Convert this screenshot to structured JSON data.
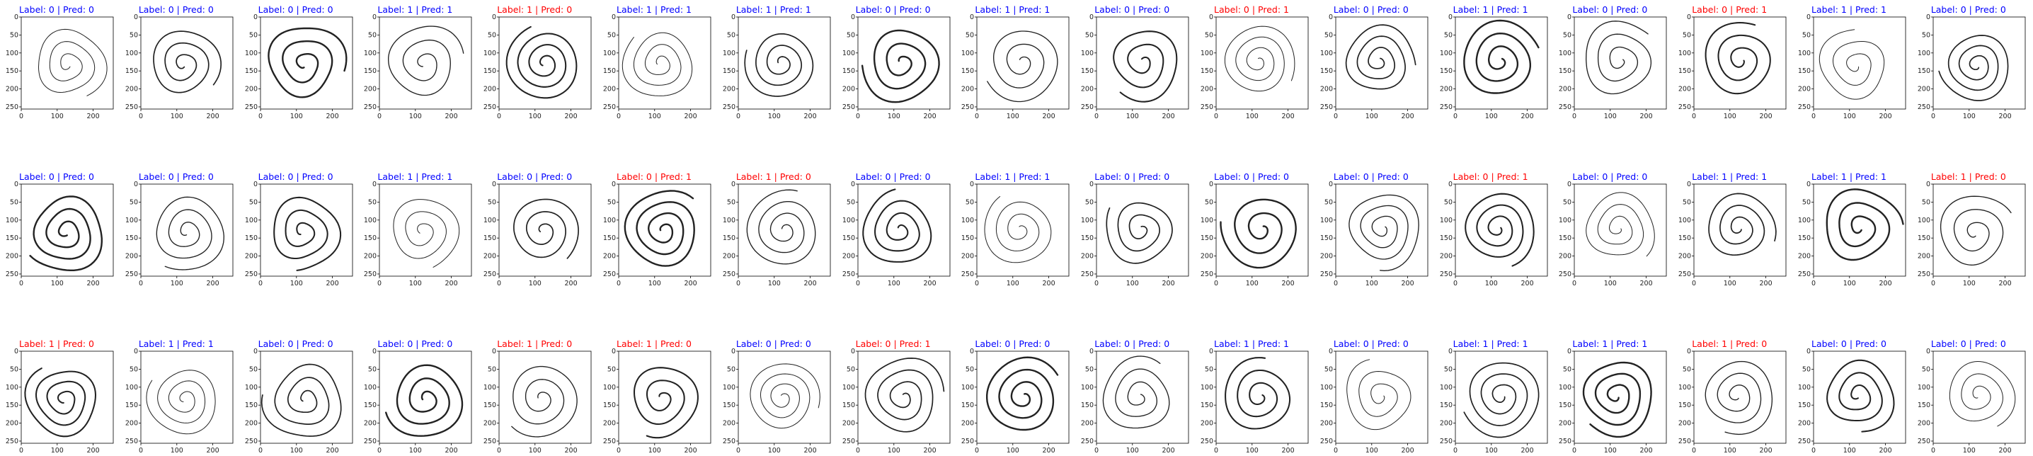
{
  "figure": {
    "colors": {
      "correct": "#0000ff",
      "incorrect": "#ff0000",
      "stroke": "#222222",
      "frame": "#000000"
    }
  },
  "chart_data": {
    "type": "image_grid",
    "rows": 3,
    "cols": 17,
    "image_extent": [
      0,
      256
    ],
    "x_ticks": [
      0,
      100,
      200
    ],
    "y_ticks": [
      0,
      50,
      100,
      150,
      200,
      250
    ],
    "x_tick_labels": [
      "0",
      "100",
      "200"
    ],
    "y_tick_labels": [
      "0",
      "50",
      "100",
      "150",
      "200",
      "250"
    ],
    "title_template": "Label: {label} | Pred: {pred}",
    "panels": [
      {
        "label": 0,
        "pred": 0,
        "title": "Label: 0 | Pred: 0",
        "color": "blue"
      },
      {
        "label": 0,
        "pred": 0,
        "title": "Label: 0 | Pred: 0",
        "color": "blue"
      },
      {
        "label": 0,
        "pred": 0,
        "title": "Label: 0 | Pred: 0",
        "color": "blue"
      },
      {
        "label": 1,
        "pred": 1,
        "title": "Label: 1 | Pred: 1",
        "color": "blue"
      },
      {
        "label": 1,
        "pred": 0,
        "title": "Label: 1 | Pred: 0",
        "color": "red"
      },
      {
        "label": 1,
        "pred": 1,
        "title": "Label: 1 | Pred: 1",
        "color": "blue"
      },
      {
        "label": 1,
        "pred": 1,
        "title": "Label: 1 | Pred: 1",
        "color": "blue"
      },
      {
        "label": 0,
        "pred": 0,
        "title": "Label: 0 | Pred: 0",
        "color": "blue"
      },
      {
        "label": 1,
        "pred": 1,
        "title": "Label: 1 | Pred: 1",
        "color": "blue"
      },
      {
        "label": 0,
        "pred": 0,
        "title": "Label: 0 | Pred: 0",
        "color": "blue"
      },
      {
        "label": 0,
        "pred": 1,
        "title": "Label: 0 | Pred: 1",
        "color": "red"
      },
      {
        "label": 0,
        "pred": 0,
        "title": "Label: 0 | Pred: 0",
        "color": "blue"
      },
      {
        "label": 1,
        "pred": 1,
        "title": "Label: 1 | Pred: 1",
        "color": "blue"
      },
      {
        "label": 0,
        "pred": 0,
        "title": "Label: 0 | Pred: 0",
        "color": "blue"
      },
      {
        "label": 0,
        "pred": 1,
        "title": "Label: 0 | Pred: 1",
        "color": "red"
      },
      {
        "label": 1,
        "pred": 1,
        "title": "Label: 1 | Pred: 1",
        "color": "blue"
      },
      {
        "label": 0,
        "pred": 0,
        "title": "Label: 0 | Pred: 0",
        "color": "blue"
      },
      {
        "label": 0,
        "pred": 0,
        "title": "Label: 0 | Pred: 0",
        "color": "blue"
      },
      {
        "label": 0,
        "pred": 0,
        "title": "Label: 0 | Pred: 0",
        "color": "blue"
      },
      {
        "label": 0,
        "pred": 0,
        "title": "Label: 0 | Pred: 0",
        "color": "blue"
      },
      {
        "label": 1,
        "pred": 1,
        "title": "Label: 1 | Pred: 1",
        "color": "blue"
      },
      {
        "label": 0,
        "pred": 0,
        "title": "Label: 0 | Pred: 0",
        "color": "blue"
      },
      {
        "label": 0,
        "pred": 1,
        "title": "Label: 0 | Pred: 1",
        "color": "red"
      },
      {
        "label": 1,
        "pred": 0,
        "title": "Label: 1 | Pred: 0",
        "color": "red"
      },
      {
        "label": 0,
        "pred": 0,
        "title": "Label: 0 | Pred: 0",
        "color": "blue"
      },
      {
        "label": 1,
        "pred": 1,
        "title": "Label: 1 | Pred: 1",
        "color": "blue"
      },
      {
        "label": 0,
        "pred": 0,
        "title": "Label: 0 | Pred: 0",
        "color": "blue"
      },
      {
        "label": 0,
        "pred": 0,
        "title": "Label: 0 | Pred: 0",
        "color": "blue"
      },
      {
        "label": 0,
        "pred": 0,
        "title": "Label: 0 | Pred: 0",
        "color": "blue"
      },
      {
        "label": 0,
        "pred": 1,
        "title": "Label: 0 | Pred: 1",
        "color": "red"
      },
      {
        "label": 0,
        "pred": 0,
        "title": "Label: 0 | Pred: 0",
        "color": "blue"
      },
      {
        "label": 1,
        "pred": 1,
        "title": "Label: 1 | Pred: 1",
        "color": "blue"
      },
      {
        "label": 1,
        "pred": 1,
        "title": "Label: 1 | Pred: 1",
        "color": "blue"
      },
      {
        "label": 1,
        "pred": 0,
        "title": "Label: 1 | Pred: 0",
        "color": "red"
      },
      {
        "label": 1,
        "pred": 0,
        "title": "Label: 1 | Pred: 0",
        "color": "red"
      },
      {
        "label": 1,
        "pred": 1,
        "title": "Label: 1 | Pred: 1",
        "color": "blue"
      },
      {
        "label": 0,
        "pred": 0,
        "title": "Label: 0 | Pred: 0",
        "color": "blue"
      },
      {
        "label": 0,
        "pred": 0,
        "title": "Label: 0 | Pred: 0",
        "color": "blue"
      },
      {
        "label": 1,
        "pred": 0,
        "title": "Label: 1 | Pred: 0",
        "color": "red"
      },
      {
        "label": 1,
        "pred": 0,
        "title": "Label: 1 | Pred: 0",
        "color": "red"
      },
      {
        "label": 0,
        "pred": 0,
        "title": "Label: 0 | Pred: 0",
        "color": "blue"
      },
      {
        "label": 0,
        "pred": 1,
        "title": "Label: 0 | Pred: 1",
        "color": "red"
      },
      {
        "label": 0,
        "pred": 0,
        "title": "Label: 0 | Pred: 0",
        "color": "blue"
      },
      {
        "label": 0,
        "pred": 0,
        "title": "Label: 0 | Pred: 0",
        "color": "blue"
      },
      {
        "label": 1,
        "pred": 1,
        "title": "Label: 1 | Pred: 1",
        "color": "blue"
      },
      {
        "label": 0,
        "pred": 0,
        "title": "Label: 0 | Pred: 0",
        "color": "blue"
      },
      {
        "label": 1,
        "pred": 1,
        "title": "Label: 1 | Pred: 1",
        "color": "blue"
      },
      {
        "label": 1,
        "pred": 1,
        "title": "Label: 1 | Pred: 1",
        "color": "blue"
      },
      {
        "label": 1,
        "pred": 0,
        "title": "Label: 1 | Pred: 0",
        "color": "red"
      },
      {
        "label": 0,
        "pred": 0,
        "title": "Label: 0 | Pred: 0",
        "color": "blue"
      },
      {
        "label": 0,
        "pred": 0,
        "title": "Label: 0 | Pred: 0",
        "color": "blue"
      }
    ]
  }
}
